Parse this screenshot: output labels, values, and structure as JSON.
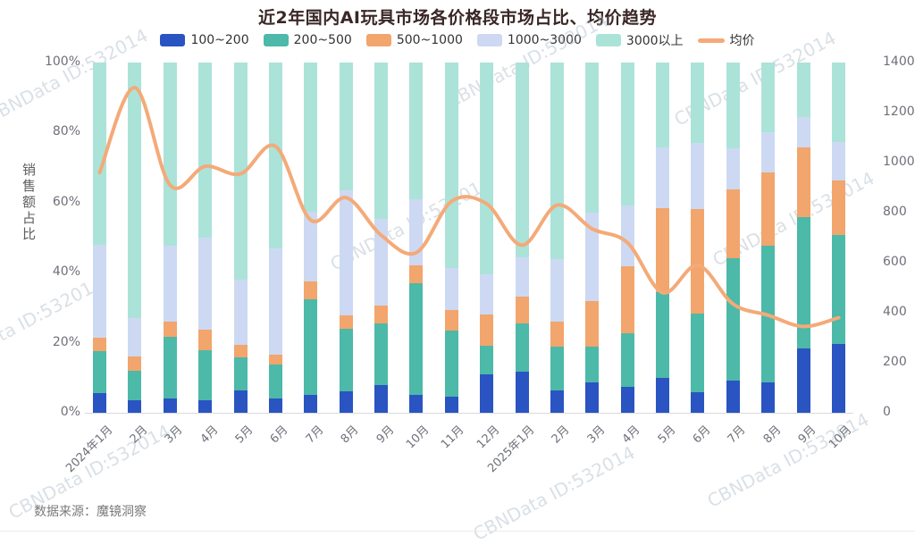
{
  "title": "近2年国内AI玩具市场各价格段市场占比、均价趋势",
  "source_note": "数据来源：魔镜洞察",
  "watermark_text": "CBNData ID:532014",
  "left_axis": {
    "label": "销售额占比",
    "ticks": [
      "100%",
      "80%",
      "60%",
      "40%",
      "20%",
      "0%"
    ]
  },
  "right_axis": {
    "ticks": [
      "1400",
      "1200",
      "1000",
      "800",
      "600",
      "400",
      "200",
      "0"
    ]
  },
  "chart_data": {
    "type": "bar",
    "stacked": true,
    "legend_position": "top",
    "grid": false,
    "categories": [
      "2024年1月",
      "2月",
      "3月",
      "4月",
      "5月",
      "6月",
      "7月",
      "8月",
      "9月",
      "10月",
      "11月",
      "12月",
      "2025年1月",
      "2月",
      "3月",
      "4月",
      "5月",
      "6月",
      "7月",
      "8月",
      "9月",
      "10月"
    ],
    "series": [
      {
        "name": "100~200",
        "color": "#2a54c2",
        "values": [
          5.5,
          3.5,
          4,
          3.5,
          6.5,
          4.2,
          5,
          6,
          8,
          5,
          4.5,
          11,
          11.7,
          6.5,
          8.6,
          7.3,
          10,
          5.8,
          9.2,
          8.8,
          18.4,
          19.6
        ]
      },
      {
        "name": "200~500",
        "color": "#4cb9a9",
        "values": [
          12,
          8.5,
          17.8,
          14.3,
          9.3,
          9.5,
          27.4,
          17.9,
          17.6,
          32.1,
          19,
          8.1,
          13.9,
          12.3,
          10.2,
          15.3,
          24.5,
          22.5,
          34.9,
          38.9,
          37.4,
          31.1
        ]
      },
      {
        "name": "500~1000",
        "color": "#f2a56c",
        "values": [
          4,
          4,
          4.2,
          5.9,
          3.6,
          3,
          5.1,
          3.8,
          5.1,
          4.9,
          5.9,
          8.9,
          7.6,
          7.2,
          13.2,
          19.2,
          23.8,
          29.8,
          19.8,
          21,
          20,
          15.7
        ]
      },
      {
        "name": "1000~3000",
        "color": "#cdd9f2",
        "values": [
          26.5,
          11,
          21.7,
          26.3,
          18.6,
          30.3,
          20,
          35.7,
          24.7,
          18.9,
          11.9,
          11.5,
          11.1,
          17.9,
          25.1,
          17.4,
          17.5,
          18.9,
          11.6,
          11.3,
          8.6,
          10.8
        ]
      },
      {
        "name": "3000以上",
        "color": "#abe3d9",
        "values": [
          52,
          73,
          52.3,
          50,
          62,
          53,
          42.5,
          36.6,
          44.6,
          39.1,
          58.7,
          60.5,
          55.7,
          56.1,
          42.9,
          40.8,
          24.2,
          23,
          24.5,
          20,
          15.6,
          22.8
        ]
      }
    ],
    "line_series": {
      "name": "均价",
      "color": "#f4aa78",
      "values": [
        960,
        1300,
        910,
        985,
        955,
        1065,
        770,
        860,
        710,
        640,
        845,
        835,
        670,
        830,
        735,
        680,
        480,
        590,
        435,
        390,
        345,
        380
      ]
    },
    "y_left": {
      "min": 0,
      "max": 100,
      "unit": "%",
      "label": "销售额占比"
    },
    "y_right": {
      "min": 0,
      "max": 1400
    }
  }
}
